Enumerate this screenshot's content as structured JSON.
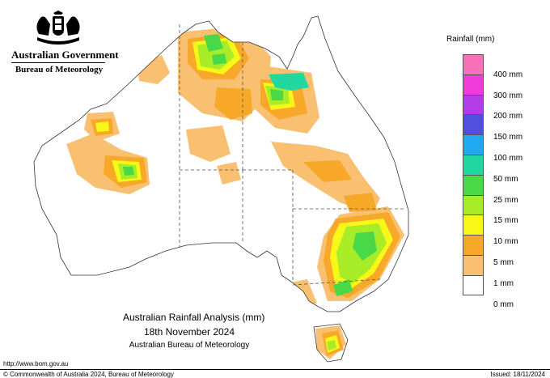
{
  "header": {
    "government": "Australian Government",
    "bureau": "Bureau of Meteorology"
  },
  "map": {
    "region": "Australia",
    "base_fill": "#ffffff",
    "state_border_style": "dashed"
  },
  "legend": {
    "title": "Rainfall (mm)",
    "classes": [
      {
        "label": "",
        "color": "#f870b8"
      },
      {
        "label": "400 mm",
        "color": "#f03cd8"
      },
      {
        "label": "300 mm",
        "color": "#b43ce8"
      },
      {
        "label": "200 mm",
        "color": "#5050e0"
      },
      {
        "label": "150 mm",
        "color": "#20a8f0"
      },
      {
        "label": "100 mm",
        "color": "#20d8a0"
      },
      {
        "label": "50 mm",
        "color": "#48d848"
      },
      {
        "label": "25 mm",
        "color": "#a8ec28"
      },
      {
        "label": "15 mm",
        "color": "#f8f818"
      },
      {
        "label": "10 mm",
        "color": "#f8a828"
      },
      {
        "label": "5 mm",
        "color": "#f8c070"
      },
      {
        "label": "1 mm",
        "color": "#ffffff"
      }
    ],
    "bottom_label": "0 mm"
  },
  "caption": {
    "title": "Australian Rainfall Analysis (mm)",
    "date": "18th November 2024",
    "organisation": "Australian Bureau of Meteorology"
  },
  "footer": {
    "url": "http://www.bom.gov.au",
    "copyright": "© Commonwealth of Australia 2024, Bureau of Meteorology",
    "issued": "Issued: 18/11/2024"
  }
}
